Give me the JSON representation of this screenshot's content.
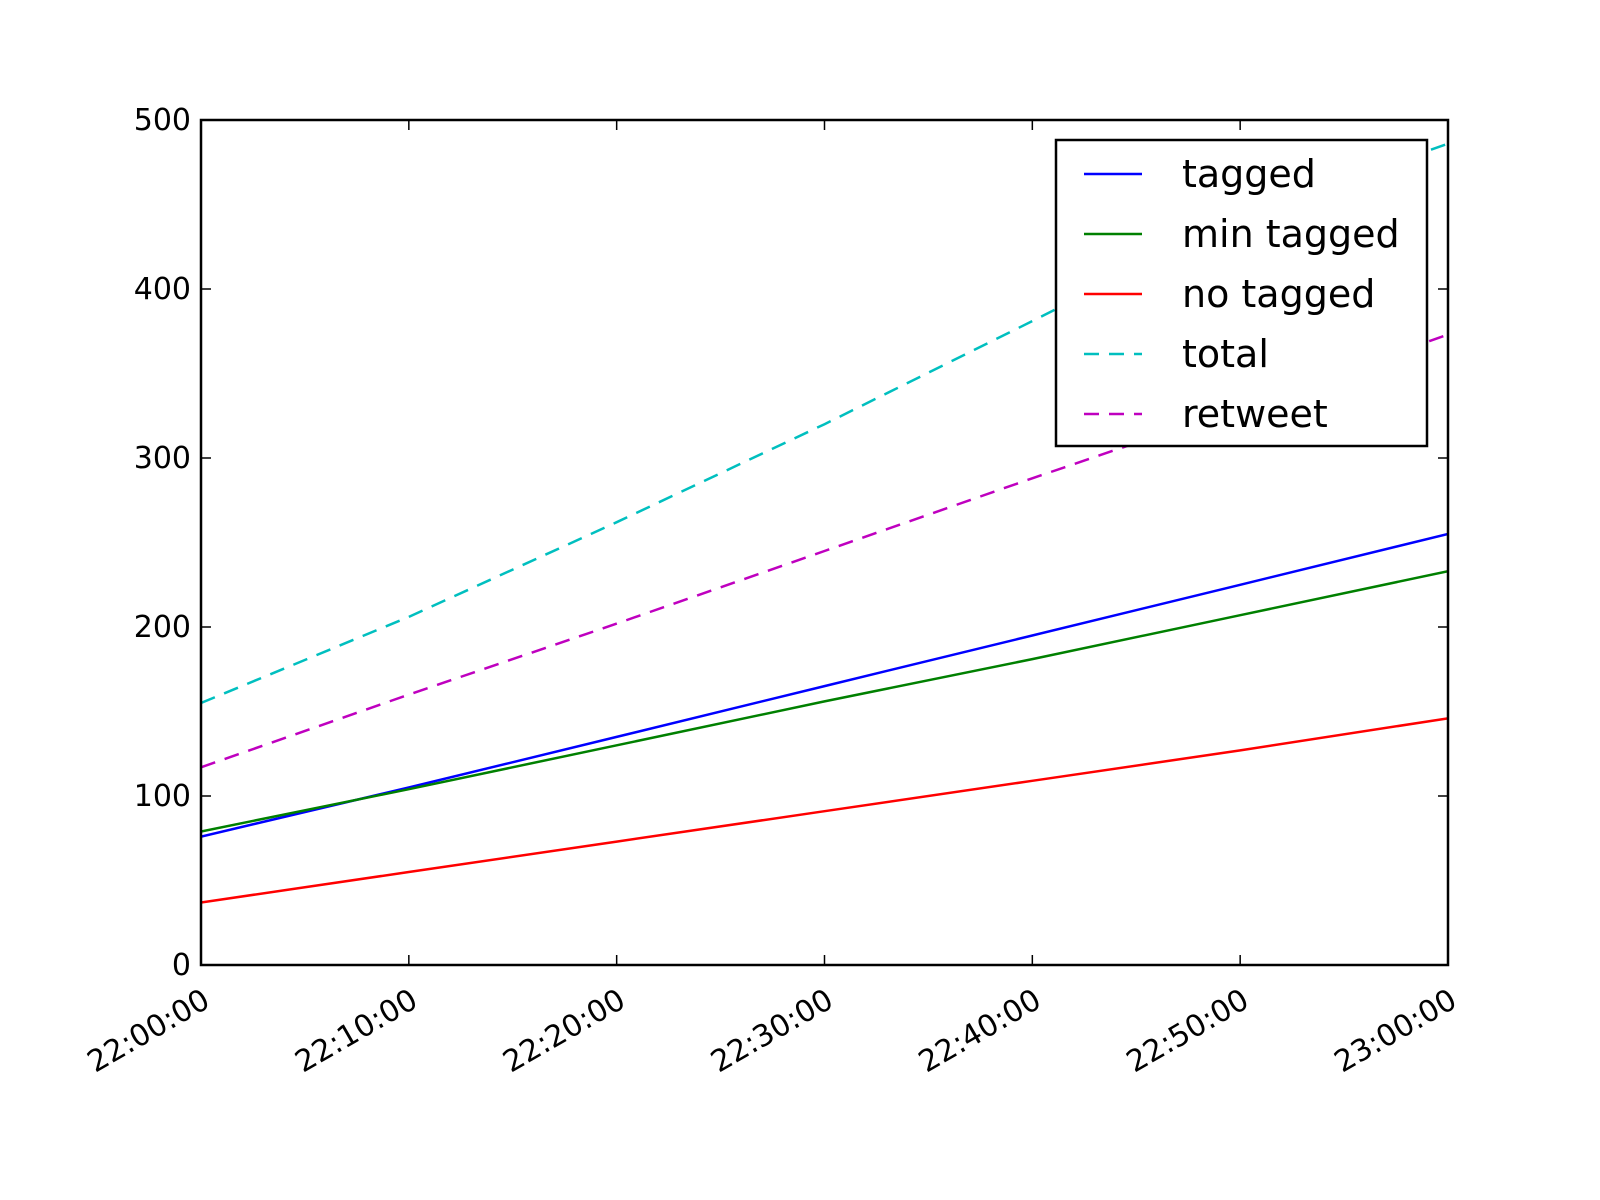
{
  "chart_data": {
    "type": "line",
    "title": "",
    "xlabel": "",
    "ylabel": "",
    "x": [
      "22:00:00",
      "22:10:00",
      "22:20:00",
      "22:30:00",
      "22:40:00",
      "22:50:00",
      "23:00:00"
    ],
    "xlim": [
      "22:00:00",
      "23:00:00"
    ],
    "ylim": [
      0,
      500
    ],
    "yticks": [
      0,
      100,
      200,
      300,
      400,
      500
    ],
    "grid": false,
    "legend_position": "top-right",
    "series": [
      {
        "name": "tagged",
        "color": "#0000ff",
        "dash": "solid",
        "values": [
          76,
          105,
          135,
          165,
          195,
          225,
          255
        ]
      },
      {
        "name": "min tagged",
        "color": "#008000",
        "dash": "solid",
        "values": [
          79,
          104,
          130,
          156,
          181,
          207,
          233
        ]
      },
      {
        "name": "no tagged",
        "color": "#ff0000",
        "dash": "solid",
        "values": [
          37,
          55,
          73,
          91,
          109,
          127,
          146
        ]
      },
      {
        "name": "total",
        "color": "#00bfbf",
        "dash": "dashed",
        "values": [
          155,
          206,
          262,
          320,
          381,
          443,
          486
        ]
      },
      {
        "name": "retweet",
        "color": "#bf00bf",
        "dash": "dashed",
        "values": [
          117,
          160,
          202,
          245,
          288,
          330,
          373
        ]
      }
    ]
  }
}
